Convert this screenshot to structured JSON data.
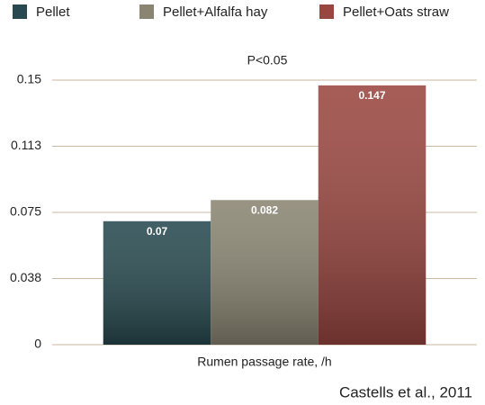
{
  "chart_data": {
    "type": "bar",
    "annotation": "P<0.05",
    "source": "Castells et al., 2011",
    "categories": [
      "Rumen passage rate, /h"
    ],
    "series": [
      {
        "name": "Pellet",
        "color": "#27494f",
        "values": [
          0.07
        ]
      },
      {
        "name": "Pellet+Alfalfa hay",
        "color": "#8a8572",
        "values": [
          0.082
        ]
      },
      {
        "name": "Pellet+Oats straw",
        "color": "#9a4640",
        "values": [
          0.147
        ]
      }
    ],
    "ylim": [
      0,
      0.15
    ],
    "yticks": [
      0,
      {
        "value": 0.0375,
        "label": "0.038"
      },
      0.075,
      {
        "value": 0.1125,
        "label": "0.113"
      },
      0.15
    ],
    "grid": true,
    "legend": "top"
  }
}
